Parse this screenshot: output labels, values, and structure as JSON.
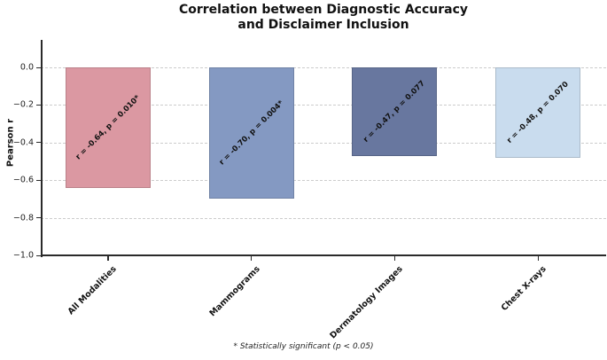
{
  "title": {
    "line1": "Correlation between Diagnostic Accuracy",
    "line2": "and Disclaimer Inclusion"
  },
  "footnote": "* Statistically significant (p < 0.05)",
  "chart_data": {
    "type": "bar",
    "title": "Correlation between Diagnostic Accuracy and Disclaimer Inclusion",
    "categories": [
      "All Modalities",
      "Mammograms",
      "Dermatology Images",
      "Chest X-rays"
    ],
    "values": [
      -0.64,
      -0.7,
      -0.47,
      -0.48
    ],
    "bar_labels": [
      "r = -0.64, p = 0.010*",
      "r = -0.70, p = 0.004*",
      "r = -0.47, p = 0.077",
      "r = -0.48, p = 0.070"
    ],
    "bar_colors": [
      "#db98a2",
      "#8499c2",
      "#68779f",
      "#c9dcee"
    ],
    "p_values": [
      0.01,
      0.004,
      0.077,
      0.07
    ],
    "significant": [
      true,
      true,
      false,
      false
    ],
    "xlabel": "",
    "ylabel": "Pearson r",
    "ylim": [
      -1.0,
      0.15
    ],
    "yticks": [
      0.0,
      -0.2,
      -0.4,
      -0.6,
      -0.8,
      -1.0
    ],
    "ytick_labels": [
      "0.0",
      "−0.2",
      "−0.4",
      "−0.6",
      "−0.8",
      "−1.0"
    ],
    "grid": "horizontal-dashed",
    "legend_position": "none",
    "footnote": "* Statistically significant (p < 0.05)"
  },
  "colors": {
    "grid": "#cccccc",
    "spine": "#2a2a2a",
    "text": "#111111",
    "background": "#ffffff"
  }
}
